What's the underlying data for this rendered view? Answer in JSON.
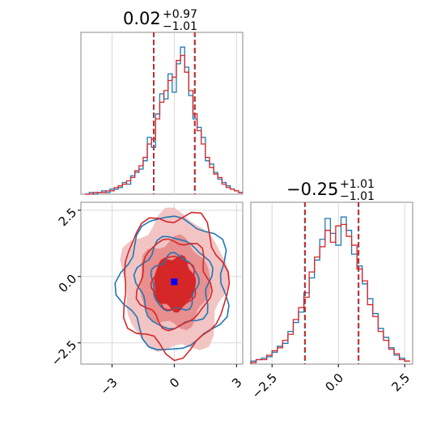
{
  "chart_data": [
    {
      "type": "histogram",
      "panel": "top-left marginal",
      "title": {
        "value": "0.02",
        "plus": "+0.97",
        "minus": "−1.01"
      },
      "xlim": [
        -4.5,
        3.3
      ],
      "quantile_lines": [
        -0.99,
        0.99
      ],
      "grid": true,
      "series": [
        {
          "color": "#1f77b4",
          "bins": [
            -4.3,
            -4.1,
            -3.9,
            -3.7,
            -3.5,
            -3.3,
            -3.1,
            -2.9,
            -2.7,
            -2.5,
            -2.3,
            -2.1,
            -1.9,
            -1.7,
            -1.5,
            -1.3,
            -1.1,
            -0.9,
            -0.7,
            -0.5,
            -0.3,
            -0.1,
            0.1,
            0.3,
            0.5,
            0.7,
            0.9,
            1.1,
            1.3,
            1.5,
            1.7,
            1.9,
            2.1,
            2.3,
            2.5,
            2.7,
            2.9,
            3.1,
            3.3
          ],
          "counts": [
            0,
            1,
            0,
            1,
            2,
            1,
            3,
            3,
            4,
            7,
            6,
            11,
            13,
            15,
            20,
            34,
            28,
            48,
            60,
            57,
            72,
            61,
            78,
            88,
            76,
            59,
            45,
            40,
            34,
            20,
            18,
            13,
            9,
            7,
            5,
            3,
            2,
            1
          ]
        },
        {
          "color": "#d62728",
          "bins": [
            -4.3,
            -4.1,
            -3.9,
            -3.7,
            -3.5,
            -3.3,
            -3.1,
            -2.9,
            -2.7,
            -2.5,
            -2.3,
            -2.1,
            -1.9,
            -1.7,
            -1.5,
            -1.3,
            -1.1,
            -0.9,
            -0.7,
            -0.5,
            -0.3,
            -0.1,
            0.1,
            0.3,
            0.5,
            0.7,
            0.9,
            1.1,
            1.3,
            1.5,
            1.7,
            1.9,
            2.1,
            2.3,
            2.5,
            2.7,
            2.9,
            3.1,
            3.3
          ],
          "counts": [
            0,
            0,
            1,
            1,
            1,
            2,
            2,
            4,
            5,
            6,
            8,
            10,
            14,
            17,
            22,
            30,
            33,
            45,
            55,
            62,
            68,
            70,
            80,
            83,
            73,
            62,
            48,
            38,
            30,
            22,
            16,
            12,
            10,
            6,
            4,
            3,
            2,
            1
          ]
        }
      ]
    },
    {
      "type": "contour",
      "panel": "bottom-left 2D density",
      "xlim": [
        -4.5,
        3.3
      ],
      "ylim": [
        -3.3,
        2.8
      ],
      "xticks": [
        -3,
        0,
        3
      ],
      "xtick_labels": [
        "−3",
        "0",
        "3"
      ],
      "yticks": [
        2.5,
        0.0,
        -2.5
      ],
      "ytick_labels": [
        "2.5",
        "0.0",
        "−2.5"
      ],
      "grid": true,
      "marker": {
        "x": 0.0,
        "y": -0.2,
        "color": "#0000ff"
      },
      "series": [
        {
          "name": "",
          "color": "#1f77b4",
          "levels_rx": [
            1.1,
            1.75,
            2.55
          ],
          "levels_ry": [
            1.05,
            1.7,
            2.5
          ],
          "center": [
            0.02,
            -0.25
          ]
        },
        {
          "name": "",
          "color": "#d62728",
          "levels_rx": [
            1.0,
            1.7,
            2.5
          ],
          "levels_ry": [
            1.0,
            1.65,
            2.6
          ],
          "center": [
            0.0,
            -0.25
          ]
        }
      ]
    },
    {
      "type": "histogram",
      "panel": "bottom-right marginal",
      "title": {
        "value": "−0.25",
        "plus": "+1.01",
        "minus": "−1.01"
      },
      "xlim": [
        -3.3,
        2.8
      ],
      "xticks": [
        -2.5,
        0.0,
        2.5
      ],
      "xtick_labels": [
        "−2.5",
        "0.0",
        "2.5"
      ],
      "quantile_lines": [
        -1.26,
        0.76
      ],
      "grid": true,
      "series": [
        {
          "color": "#1f77b4",
          "bins": [
            -3.3,
            -3.1,
            -2.9,
            -2.7,
            -2.5,
            -2.3,
            -2.1,
            -1.9,
            -1.7,
            -1.5,
            -1.3,
            -1.1,
            -0.9,
            -0.7,
            -0.5,
            -0.3,
            -0.1,
            0.1,
            0.3,
            0.5,
            0.7,
            0.9,
            1.1,
            1.3,
            1.5,
            1.7,
            1.9,
            2.1,
            2.3,
            2.5,
            2.7
          ],
          "counts": [
            2,
            3,
            4,
            5,
            8,
            12,
            14,
            22,
            28,
            35,
            48,
            58,
            70,
            84,
            98,
            88,
            80,
            99,
            90,
            74,
            66,
            54,
            44,
            34,
            24,
            18,
            11,
            6,
            4,
            2
          ]
        },
        {
          "color": "#d62728",
          "bins": [
            -3.3,
            -3.1,
            -2.9,
            -2.7,
            -2.5,
            -2.3,
            -2.1,
            -1.9,
            -1.7,
            -1.5,
            -1.3,
            -1.1,
            -0.9,
            -0.7,
            -0.5,
            -0.3,
            -0.1,
            0.1,
            0.3,
            0.5,
            0.7,
            0.9,
            1.1,
            1.3,
            1.5,
            1.7,
            1.9,
            2.1,
            2.3,
            2.5,
            2.7
          ],
          "counts": [
            1,
            3,
            3,
            6,
            9,
            11,
            16,
            20,
            30,
            38,
            45,
            62,
            72,
            79,
            90,
            82,
            93,
            94,
            86,
            80,
            64,
            56,
            40,
            32,
            22,
            16,
            10,
            7,
            3,
            2
          ]
        }
      ]
    }
  ]
}
